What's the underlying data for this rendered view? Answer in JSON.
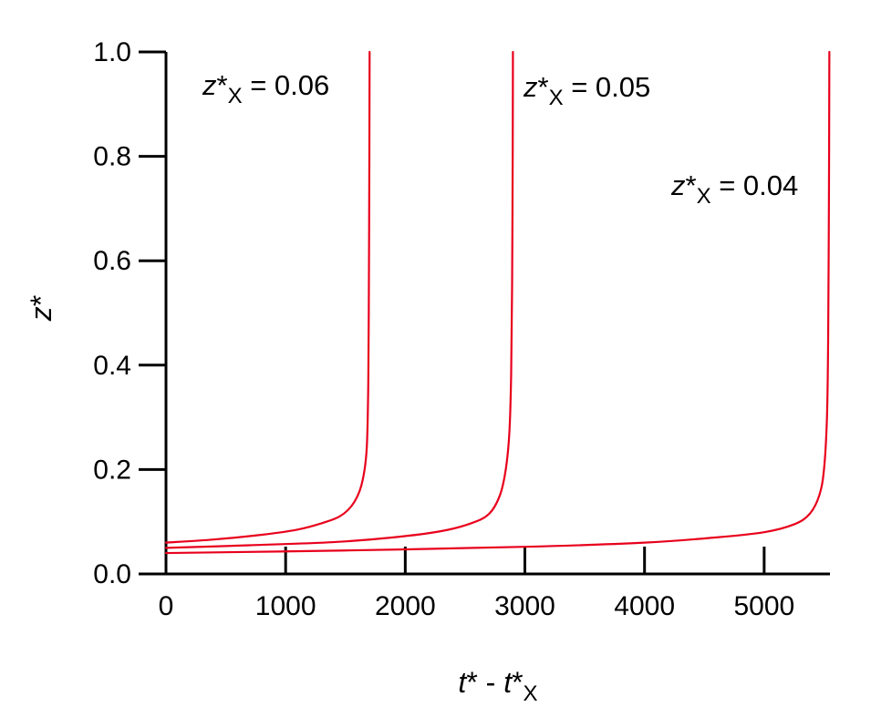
{
  "chart_data": {
    "type": "line",
    "xlabel": {
      "var": "t",
      "sup": "*",
      "sep": " - ",
      "var2": "t",
      "sup2": "*",
      "sub2": "X"
    },
    "ylabel": {
      "var": "z",
      "sup": "*"
    },
    "xlim": [
      0,
      5550
    ],
    "ylim": [
      0,
      1.0
    ],
    "xticks": [
      0,
      1000,
      2000,
      3000,
      4000,
      5000
    ],
    "xtick_labels": [
      "0",
      "1000",
      "2000",
      "3000",
      "4000",
      "5000"
    ],
    "yticks": [
      0,
      0.2,
      0.4,
      0.6,
      0.8,
      1.0
    ],
    "ytick_labels": [
      "0.0",
      "0.2",
      "0.4",
      "0.6",
      "0.8",
      "1.0"
    ],
    "grid": false,
    "legend": "none",
    "color": "#e8001c",
    "series": [
      {
        "annotation": {
          "var": "z",
          "sup": "*",
          "sub": "X",
          "eq": " = 0.06"
        },
        "x": [
          0,
          400,
          800,
          1100,
          1300,
          1450,
          1550,
          1620,
          1660,
          1680,
          1690,
          1695,
          1700,
          1702
        ],
        "y": [
          0.06,
          0.066,
          0.075,
          0.085,
          0.097,
          0.11,
          0.13,
          0.16,
          0.2,
          0.25,
          0.35,
          0.5,
          0.8,
          1.0
        ]
      },
      {
        "annotation": {
          "var": "z",
          "sup": "*",
          "sub": "X",
          "eq": " = 0.05"
        },
        "x": [
          0,
          700,
          1400,
          1900,
          2300,
          2550,
          2700,
          2790,
          2840,
          2870,
          2885,
          2893,
          2898,
          2900
        ],
        "y": [
          0.05,
          0.055,
          0.061,
          0.07,
          0.082,
          0.097,
          0.115,
          0.15,
          0.2,
          0.27,
          0.38,
          0.55,
          0.8,
          1.0
        ]
      },
      {
        "annotation": {
          "var": "z",
          "sup": "*",
          "sub": "X",
          "eq": " = 0.04"
        },
        "x": [
          0,
          1500,
          3000,
          4000,
          4600,
          5000,
          5250,
          5380,
          5460,
          5500,
          5525,
          5535,
          5542,
          5545
        ],
        "y": [
          0.04,
          0.045,
          0.052,
          0.06,
          0.07,
          0.08,
          0.095,
          0.115,
          0.15,
          0.2,
          0.3,
          0.45,
          0.75,
          1.0
        ]
      }
    ]
  }
}
